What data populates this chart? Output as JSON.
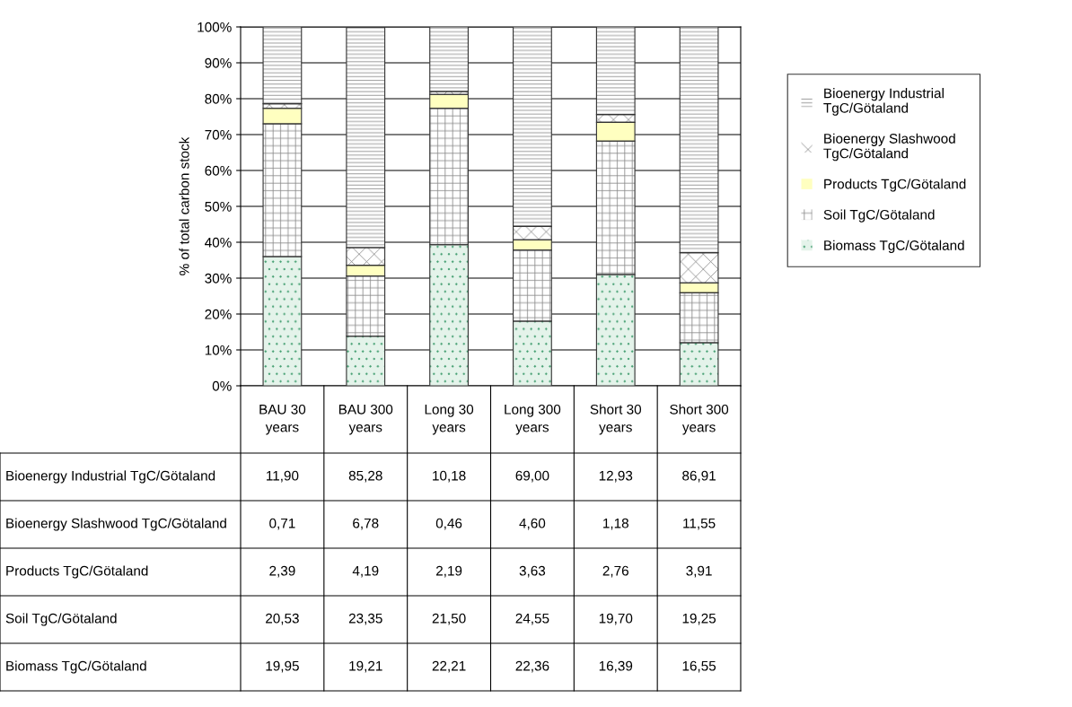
{
  "chart_data": {
    "type": "bar",
    "stacked": true,
    "ylabel": "% of total carbon stock",
    "categories": [
      "BAU 30 years",
      "BAU 300 years",
      "Long 30 years",
      "Long 300 years",
      "Short 30 years",
      "Short 300 years"
    ],
    "series": [
      {
        "name": "Biomass TgC/Götaland",
        "color": "#e4f3ea",
        "values": [
          36.0,
          13.8,
          39.3,
          18.0,
          31.0,
          12.0
        ]
      },
      {
        "name": "Soil TgC/Götaland",
        "color": "#ffffff",
        "values": [
          37.0,
          16.8,
          38.0,
          19.8,
          37.2,
          13.9
        ]
      },
      {
        "name": "Products TgC/Götaland",
        "color": "#ffffc0",
        "values": [
          4.3,
          3.0,
          3.9,
          2.9,
          5.2,
          2.8
        ]
      },
      {
        "name": "Bioenergy Slashwood TgC/Götaland",
        "color": "#ffffff",
        "values": [
          1.3,
          4.9,
          0.8,
          3.7,
          2.2,
          8.4
        ]
      },
      {
        "name": "Bioenergy Industrial TgC/Götaland",
        "color": "#ffffff",
        "values": [
          21.4,
          61.4,
          18.0,
          55.6,
          24.4,
          62.9
        ]
      }
    ],
    "annotations": [
      "11,90",
      "85,28",
      "10,18",
      "69,00",
      "12,93",
      "86,91",
      "0,71",
      "6,78",
      "0,46",
      "4,60",
      "1,18",
      "11,55",
      "2,39",
      "4,19",
      "2,19",
      "3,63",
      "2,76",
      "3,91",
      "20,53",
      "23,35",
      "21,50",
      "24,55",
      "19,70",
      "19,25",
      "19,95",
      "19,21",
      "22,21",
      "22,36",
      "16,39",
      "16,55"
    ],
    "ylim": [
      0,
      100
    ],
    "yticks": [
      {
        "value": 0,
        "label": "0%"
      },
      {
        "value": 10,
        "label": "10%"
      },
      {
        "value": 20,
        "label": "20%"
      },
      {
        "value": 30,
        "label": "30%"
      },
      {
        "value": 40,
        "label": "40%"
      },
      {
        "value": 50,
        "label": "50%"
      },
      {
        "value": 60,
        "label": "60%"
      },
      {
        "value": 70,
        "label": "70%"
      },
      {
        "value": 80,
        "label": "80%"
      },
      {
        "value": 90,
        "label": "90%"
      },
      {
        "value": 100,
        "label": "100%"
      }
    ],
    "grid": "y",
    "legend": "right"
  }
}
